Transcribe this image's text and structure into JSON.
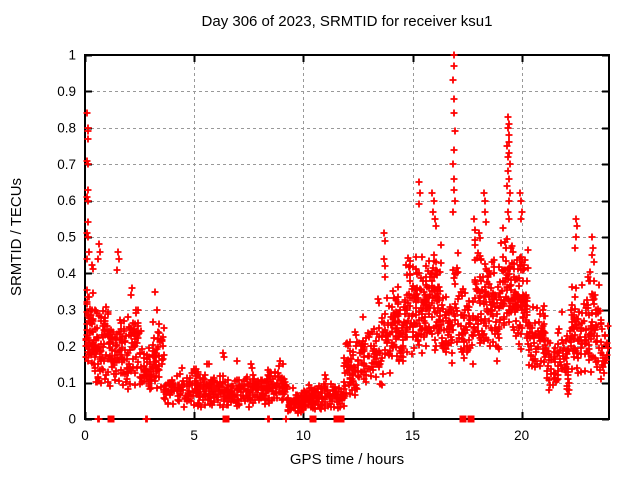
{
  "chart_data": {
    "type": "scatter",
    "title": "Day 306 of 2023, SRMTID for receiver ksu1",
    "xlabel": "GPS time / hours",
    "ylabel": "SRMTID / TECUs",
    "xlim": [
      0,
      24
    ],
    "ylim": [
      0,
      1
    ],
    "xticks": [
      0,
      5,
      10,
      15,
      20
    ],
    "yticks": [
      0,
      0.1,
      0.2,
      0.3,
      0.4,
      0.5,
      0.6,
      0.7,
      0.8,
      0.9,
      1
    ],
    "grid": true,
    "legend": "none",
    "marker": "plus",
    "marker_color": "#ff0000",
    "grid_color": "#999999",
    "axis_color": "#000000",
    "background_color": "#ffffff",
    "seed": 306,
    "outlier_points": [
      [
        0.1,
        0.84
      ],
      [
        0.14,
        0.8
      ],
      [
        0.12,
        0.79
      ],
      [
        0.16,
        0.77
      ],
      [
        0.1,
        0.71
      ],
      [
        0.15,
        0.7
      ],
      [
        0.12,
        0.63
      ],
      [
        0.1,
        0.61
      ],
      [
        0.13,
        0.6
      ],
      [
        0.12,
        0.54
      ],
      [
        0.1,
        0.51
      ],
      [
        0.15,
        0.5
      ],
      [
        0.2,
        0.46
      ],
      [
        0.08,
        0.44
      ],
      [
        0.64,
        0.48
      ],
      [
        0.7,
        0.46
      ],
      [
        0.6,
        0.44
      ],
      [
        1.5,
        0.46
      ],
      [
        1.56,
        0.44
      ],
      [
        1.48,
        0.41
      ],
      [
        2.15,
        0.36
      ],
      [
        2.1,
        0.34
      ],
      [
        3.2,
        0.35
      ],
      [
        3.28,
        0.3
      ],
      [
        5.6,
        0.15
      ],
      [
        5.66,
        0.15
      ],
      [
        6.3,
        0.18
      ],
      [
        6.38,
        0.17
      ],
      [
        6.95,
        0.16
      ],
      [
        7.6,
        0.15
      ],
      [
        7.66,
        0.14
      ],
      [
        8.95,
        0.16
      ],
      [
        9.05,
        0.15
      ],
      [
        11.0,
        0.12
      ],
      [
        11.06,
        0.11
      ],
      [
        12.35,
        0.24
      ],
      [
        12.42,
        0.23
      ],
      [
        13.4,
        0.33
      ],
      [
        13.46,
        0.32
      ],
      [
        13.7,
        0.51
      ],
      [
        13.74,
        0.49
      ],
      [
        13.68,
        0.44
      ],
      [
        13.76,
        0.42
      ],
      [
        13.72,
        0.39
      ],
      [
        15.28,
        0.65
      ],
      [
        15.33,
        0.62
      ],
      [
        15.3,
        0.59
      ],
      [
        15.9,
        0.62
      ],
      [
        15.97,
        0.6
      ],
      [
        15.93,
        0.57
      ],
      [
        16.03,
        0.55
      ],
      [
        16.08,
        0.53
      ],
      [
        16.88,
        1.0
      ],
      [
        16.9,
        0.97
      ],
      [
        16.87,
        0.93
      ],
      [
        16.92,
        0.88
      ],
      [
        16.89,
        0.84
      ],
      [
        16.93,
        0.79
      ],
      [
        16.9,
        0.74
      ],
      [
        16.86,
        0.7
      ],
      [
        16.91,
        0.66
      ],
      [
        16.88,
        0.63
      ],
      [
        16.94,
        0.6
      ],
      [
        16.85,
        0.57
      ],
      [
        17.8,
        0.55
      ],
      [
        17.86,
        0.52
      ],
      [
        18.28,
        0.62
      ],
      [
        18.33,
        0.6
      ],
      [
        18.3,
        0.57
      ],
      [
        18.36,
        0.54
      ],
      [
        19.38,
        0.83
      ],
      [
        19.42,
        0.81
      ],
      [
        19.36,
        0.8
      ],
      [
        19.44,
        0.78
      ],
      [
        19.4,
        0.76
      ],
      [
        19.35,
        0.75
      ],
      [
        19.43,
        0.73
      ],
      [
        19.39,
        0.72
      ],
      [
        19.45,
        0.7
      ],
      [
        19.37,
        0.68
      ],
      [
        19.41,
        0.66
      ],
      [
        19.34,
        0.64
      ],
      [
        19.46,
        0.62
      ],
      [
        19.4,
        0.6
      ],
      [
        19.38,
        0.57
      ],
      [
        19.43,
        0.55
      ],
      [
        19.92,
        0.62
      ],
      [
        19.98,
        0.6
      ],
      [
        20.03,
        0.57
      ],
      [
        19.95,
        0.55
      ],
      [
        22.48,
        0.55
      ],
      [
        22.53,
        0.53
      ],
      [
        22.5,
        0.5
      ],
      [
        22.45,
        0.47
      ],
      [
        23.22,
        0.5
      ],
      [
        23.27,
        0.47
      ],
      [
        23.24,
        0.45
      ],
      [
        23.3,
        0.43
      ]
    ],
    "clusters": [
      [
        0.05,
        0.35,
        45,
        0.13,
        0.44
      ],
      [
        0.3,
        1.1,
        85,
        0.09,
        0.34
      ],
      [
        1.1,
        2.0,
        85,
        0.08,
        0.3
      ],
      [
        2.0,
        2.6,
        55,
        0.09,
        0.32
      ],
      [
        2.6,
        3.05,
        40,
        0.07,
        0.2
      ],
      [
        3.05,
        3.6,
        50,
        0.07,
        0.29
      ],
      [
        3.6,
        4.4,
        45,
        0.035,
        0.13
      ],
      [
        4.4,
        5.3,
        65,
        0.03,
        0.14
      ],
      [
        5.3,
        6.3,
        70,
        0.03,
        0.135
      ],
      [
        6.3,
        7.3,
        70,
        0.025,
        0.125
      ],
      [
        7.3,
        8.3,
        70,
        0.03,
        0.13
      ],
      [
        8.3,
        9.3,
        75,
        0.035,
        0.15
      ],
      [
        9.3,
        10.0,
        50,
        0.012,
        0.08
      ],
      [
        10.0,
        11.2,
        90,
        0.02,
        0.105
      ],
      [
        11.2,
        11.85,
        45,
        0.025,
        0.1
      ],
      [
        11.85,
        12.7,
        70,
        0.06,
        0.22
      ],
      [
        12.7,
        13.6,
        60,
        0.08,
        0.29
      ],
      [
        13.6,
        14.0,
        28,
        0.12,
        0.34
      ],
      [
        14.0,
        14.7,
        75,
        0.14,
        0.38
      ],
      [
        14.7,
        15.6,
        95,
        0.16,
        0.46
      ],
      [
        15.6,
        16.3,
        85,
        0.17,
        0.5
      ],
      [
        16.3,
        16.85,
        45,
        0.13,
        0.36
      ],
      [
        16.85,
        17.1,
        18,
        0.2,
        0.52
      ],
      [
        17.1,
        17.85,
        55,
        0.13,
        0.38
      ],
      [
        17.85,
        19.05,
        125,
        0.15,
        0.5
      ],
      [
        19.05,
        19.6,
        60,
        0.22,
        0.54
      ],
      [
        19.6,
        20.3,
        90,
        0.19,
        0.5
      ],
      [
        20.3,
        21.1,
        70,
        0.11,
        0.32
      ],
      [
        21.1,
        22.2,
        80,
        0.06,
        0.26
      ],
      [
        22.2,
        23.0,
        70,
        0.11,
        0.4
      ],
      [
        23.0,
        23.6,
        55,
        0.11,
        0.42
      ],
      [
        23.6,
        23.95,
        25,
        0.1,
        0.3
      ]
    ],
    "zero_plus_markers": [
      0.58,
      0.63,
      2.78,
      2.84,
      8.37,
      8.43,
      9.22
    ],
    "zero_square_markers": [
      1.2,
      6.48,
      10.42,
      11.55,
      11.72,
      17.32,
      17.68
    ]
  }
}
